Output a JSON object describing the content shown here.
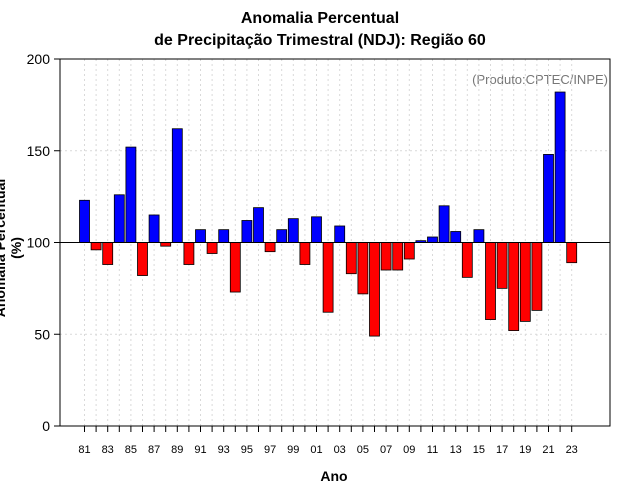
{
  "chart_data": {
    "type": "bar",
    "title": "Anomalia Percentual",
    "subtitle": "de Precipitação Trimestral (NDJ): Região 60",
    "xlabel": "Ano",
    "ylabel": "Anomalia Percentual (%)",
    "annotation": "(Produto:CPTEC/INPE)",
    "baseline": 100,
    "ylim": [
      0,
      200
    ],
    "yticks": [
      "0",
      "50",
      "100",
      "150",
      "200"
    ],
    "grid": true,
    "colors": {
      "above": "#0000ff",
      "below": "#ff0000"
    },
    "categories": [
      "81",
      "82",
      "83",
      "84",
      "85",
      "86",
      "87",
      "88",
      "89",
      "90",
      "91",
      "92",
      "93",
      "94",
      "95",
      "96",
      "97",
      "98",
      "99",
      "00",
      "01",
      "02",
      "03",
      "04",
      "05",
      "06",
      "07",
      "08",
      "09",
      "10",
      "11",
      "12",
      "13",
      "14",
      "15",
      "16",
      "17",
      "18",
      "19",
      "20",
      "21",
      "22",
      "23"
    ],
    "xtick_labels": [
      "81",
      "83",
      "85",
      "87",
      "89",
      "91",
      "93",
      "95",
      "97",
      "99",
      "01",
      "03",
      "05",
      "07",
      "09",
      "11",
      "13",
      "15",
      "17",
      "19",
      "21",
      "23"
    ],
    "values": [
      123,
      96,
      88,
      126,
      152,
      82,
      115,
      98,
      162,
      88,
      107,
      94,
      107,
      73,
      112,
      119,
      95,
      107,
      113,
      88,
      114,
      62,
      109,
      83,
      72,
      49,
      85,
      85,
      91,
      101,
      103,
      120,
      106,
      81,
      107,
      58,
      75,
      52,
      57,
      63,
      148,
      182,
      89
    ]
  }
}
